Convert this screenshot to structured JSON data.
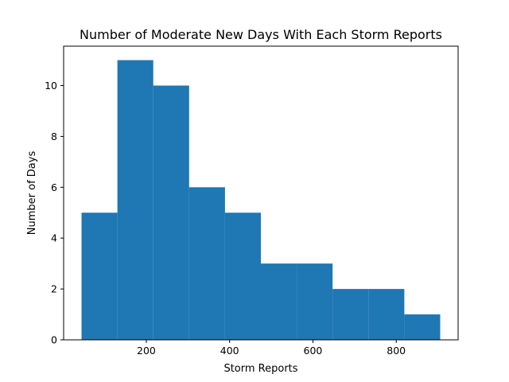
{
  "chart_data": {
    "type": "bar",
    "title": "Number of Moderate New Days With Each Storm Reports",
    "xlabel": "Storm Reports",
    "ylabel": "Number of Days",
    "bin_edges": [
      44.5,
      130.6,
      216.7,
      302.8,
      388.9,
      475.0,
      561.1,
      647.2,
      733.3,
      819.4,
      905.5
    ],
    "values": [
      5,
      11,
      10,
      6,
      5,
      3,
      3,
      2,
      2,
      1
    ],
    "xlim": [
      1.5,
      948.5
    ],
    "ylim": [
      0,
      11.55
    ],
    "x_ticks": [
      200,
      400,
      600,
      800
    ],
    "y_ticks": [
      0,
      2,
      4,
      6,
      8,
      10
    ],
    "grid": false,
    "legend": "none",
    "bar_color": "#1f77b4"
  }
}
